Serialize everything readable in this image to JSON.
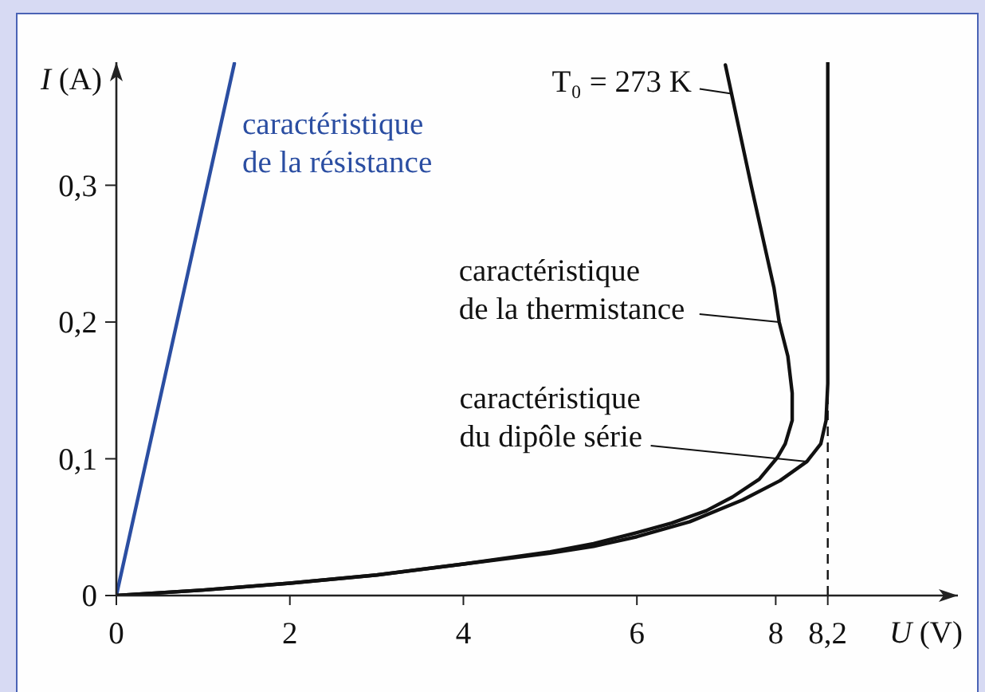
{
  "chart_data": {
    "type": "line",
    "xlabel": "U (V)",
    "ylabel": "I (A)",
    "xlim": [
      0,
      9.7
    ],
    "ylim": [
      0,
      0.39
    ],
    "xticks": [
      0,
      2,
      4,
      6,
      {
        "value": 7.6,
        "label": "8"
      },
      {
        "value": 8.2,
        "label": "8,2"
      }
    ],
    "yticks": [
      0,
      {
        "value": 0.1,
        "label": "0,1"
      },
      {
        "value": 0.2,
        "label": "0,2"
      },
      {
        "value": 0.3,
        "label": "0,3"
      }
    ],
    "marker": "none",
    "line_style": "solid",
    "series": [
      {
        "name": "caractéristique de la résistance",
        "color": "#2b4ea2",
        "x": [
          0,
          1.36
        ],
        "values": [
          0,
          0.389
        ]
      },
      {
        "name": "caractéristique de la thermistance",
        "color": "#111111",
        "x": [
          0,
          1,
          2,
          3,
          4,
          5,
          5.5,
          6,
          6.4,
          6.8,
          7.1,
          7.41,
          7.62,
          7.71,
          7.79,
          7.79,
          7.74,
          7.64,
          7.58,
          7.32,
          7.02
        ],
        "values": [
          0,
          0.004,
          0.009,
          0.015,
          0.023,
          0.032,
          0.038,
          0.046,
          0.053,
          0.062,
          0.072,
          0.085,
          0.101,
          0.111,
          0.128,
          0.148,
          0.175,
          0.2,
          0.225,
          0.299,
          0.388
        ]
      },
      {
        "name": "caractéristique du dipôle série",
        "color": "#111111",
        "x": [
          0,
          1,
          2,
          3,
          4,
          5,
          5.5,
          6,
          6.61,
          7.22,
          7.65,
          7.96,
          8.12,
          8.18,
          8.2,
          8.2
        ],
        "values": [
          0,
          0.004,
          0.009,
          0.015,
          0.023,
          0.031,
          0.036,
          0.043,
          0.054,
          0.07,
          0.084,
          0.098,
          0.111,
          0.128,
          0.155,
          0.39
        ]
      }
    ],
    "ref_lines": [
      {
        "axis": "x",
        "value": 8.2,
        "color": "#111111",
        "line_style": "dashed"
      }
    ],
    "annotations": [
      {
        "text": "T₀ = 273 K",
        "x": 7.09,
        "y": 0.367
      }
    ]
  }
}
